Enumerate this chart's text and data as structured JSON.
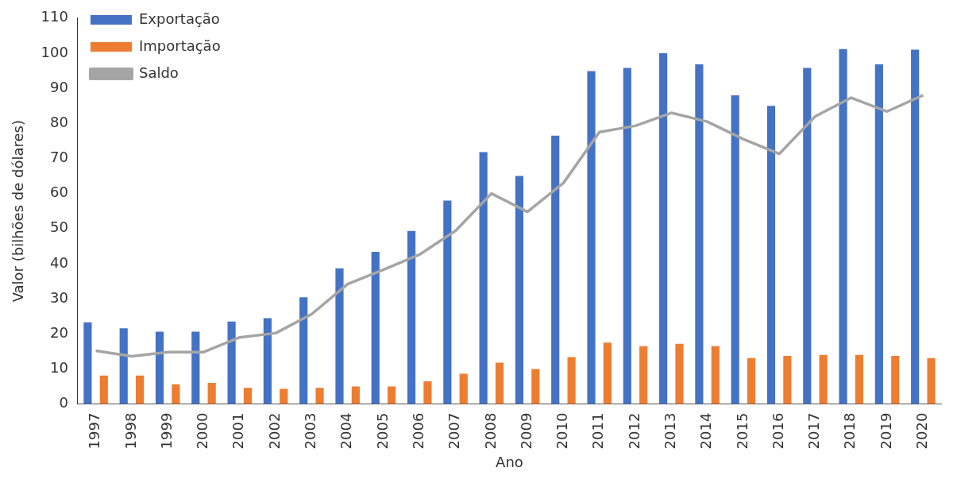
{
  "chart_data": {
    "type": "bar",
    "xlabel": "Ano",
    "ylabel": "Valor (bilhões de dólares)",
    "categories": [
      "1997",
      "1998",
      "1999",
      "2000",
      "2001",
      "2002",
      "2003",
      "2004",
      "2005",
      "2006",
      "2007",
      "2008",
      "2009",
      "2010",
      "2011",
      "2012",
      "2013",
      "2014",
      "2015",
      "2016",
      "2017",
      "2018",
      "2019",
      "2020"
    ],
    "series": [
      {
        "name": "Exportação",
        "color": "#4472c4",
        "values": [
          23.3,
          21.6,
          20.6,
          20.6,
          23.5,
          24.5,
          30.4,
          38.7,
          43.4,
          49.3,
          58,
          71.8,
          65,
          76.5,
          94.9,
          95.8,
          100,
          96.8,
          88,
          85,
          95.8,
          101.2,
          96.8,
          101
        ]
      },
      {
        "name": "Importação",
        "color": "#ed7d31",
        "values": [
          8.1,
          8.1,
          5.6,
          6,
          4.6,
          4.3,
          4.6,
          5,
          5,
          6.5,
          8.6,
          11.8,
          10,
          13.4,
          17.5,
          16.5,
          17.2,
          16.5,
          13.1,
          13.7,
          14,
          14,
          13.7,
          13.1
        ]
      },
      {
        "name": "Saldo",
        "type": "line",
        "color": "#a5a5a5",
        "values": [
          15.2,
          13.6,
          14.8,
          14.8,
          19,
          20.2,
          25.6,
          34.2,
          38.3,
          42.6,
          49.4,
          60,
          54.8,
          63,
          77.5,
          79.3,
          83,
          80.5,
          75.5,
          71.3,
          82,
          87.3,
          83.4,
          88
        ]
      }
    ],
    "ylim": [
      0,
      110
    ],
    "yticks": [
      0,
      10,
      20,
      30,
      40,
      50,
      60,
      70,
      80,
      90,
      100,
      110
    ],
    "grid": false,
    "legend": "top left",
    "marker": "none"
  }
}
